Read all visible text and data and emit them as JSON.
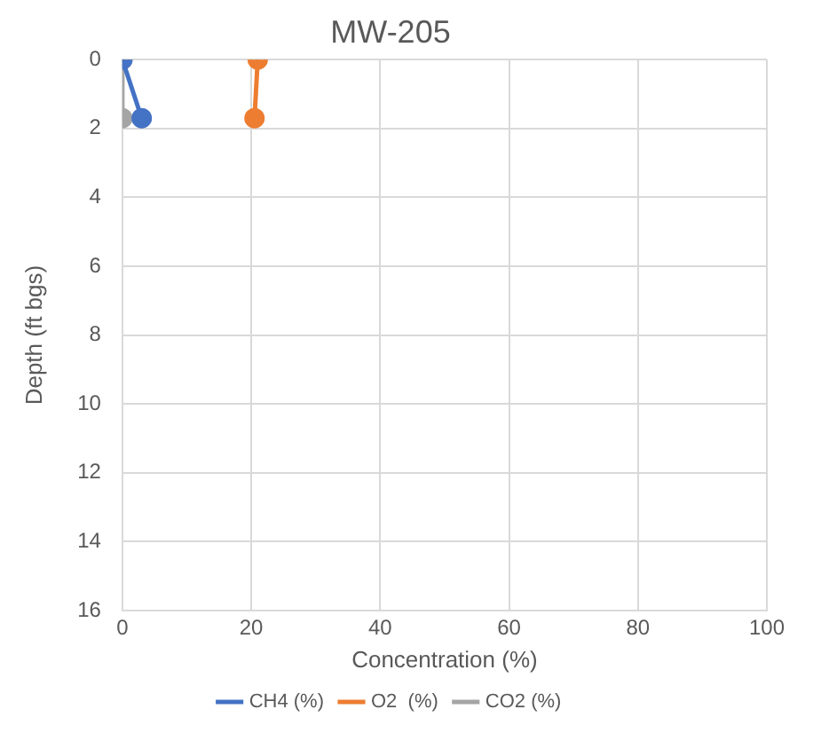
{
  "chart_data": {
    "type": "line",
    "title": "MW-205",
    "xlabel": "Concentration (%)",
    "ylabel": "Depth (ft bgs)",
    "xlim": [
      0,
      100
    ],
    "xticks": [
      0,
      20,
      40,
      60,
      80,
      100
    ],
    "ylim": [
      16,
      0
    ],
    "yticks": [
      0,
      2,
      4,
      6,
      8,
      10,
      12,
      14,
      16
    ],
    "grid": true,
    "legend": "bottom",
    "marker": "circle",
    "line_style": "solid",
    "series": [
      {
        "name": "CH4 (%)",
        "color": "#4472c4",
        "x": [
          0,
          3
        ],
        "values": [
          0,
          1.7
        ]
      },
      {
        "name": "O2  (%)",
        "color": "#ed7d31",
        "x": [
          21,
          20.5
        ],
        "values": [
          0,
          1.7
        ]
      },
      {
        "name": "CO2 (%)",
        "color": "#a5a5a5",
        "x": [
          0,
          0
        ],
        "values": [
          0,
          1.7
        ]
      }
    ]
  }
}
